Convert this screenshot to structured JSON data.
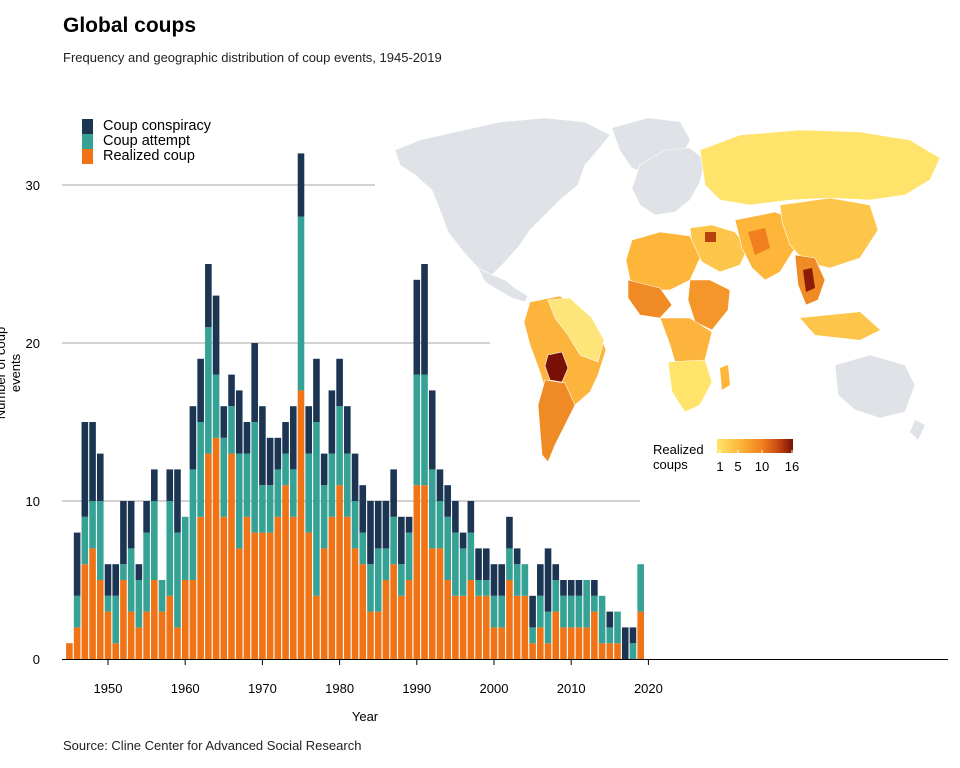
{
  "title": "Global coups",
  "subtitle": "Frequency and geographic distribution of coup events, 1945-2019",
  "caption": "Source: Cline Center for Advanced Social Research",
  "colors": {
    "conspiracy": "#1b3553",
    "attempt": "#35a295",
    "realized": "#f07316",
    "land": "#dfe2e6",
    "grid": "#c3c3c3"
  },
  "chart_data": {
    "type": "bar",
    "stacked": true,
    "title": "Global coups",
    "subtitle": "Frequency and geographic distribution of coup events, 1945-2019",
    "xlabel": "Year",
    "ylabel": "Number of coup events",
    "xlim": [
      1944.5,
      2020.5
    ],
    "ylim": [
      0,
      33
    ],
    "x_ticks": [
      1950,
      1960,
      1970,
      1980,
      1990,
      2000,
      2010,
      2020
    ],
    "y_ticks": [
      0,
      10,
      20,
      30
    ],
    "legend_position": "top-left",
    "years": [
      1945,
      1946,
      1947,
      1948,
      1949,
      1950,
      1951,
      1952,
      1953,
      1954,
      1955,
      1956,
      1957,
      1958,
      1959,
      1960,
      1961,
      1962,
      1963,
      1964,
      1965,
      1966,
      1967,
      1968,
      1969,
      1970,
      1971,
      1972,
      1973,
      1974,
      1975,
      1976,
      1977,
      1978,
      1979,
      1980,
      1981,
      1982,
      1983,
      1984,
      1985,
      1986,
      1987,
      1988,
      1989,
      1990,
      1991,
      1992,
      1993,
      1994,
      1995,
      1996,
      1997,
      1998,
      1999,
      2000,
      2001,
      2002,
      2003,
      2004,
      2005,
      2006,
      2007,
      2008,
      2009,
      2010,
      2011,
      2012,
      2013,
      2014,
      2015,
      2016,
      2017,
      2018,
      2019
    ],
    "series": [
      {
        "name": "Realized coup",
        "values": [
          1,
          2,
          6,
          7,
          5,
          3,
          1,
          5,
          3,
          2,
          3,
          5,
          3,
          4,
          2,
          5,
          5,
          9,
          13,
          14,
          9,
          13,
          7,
          9,
          8,
          8,
          8,
          9,
          11,
          9,
          17,
          8,
          4,
          7,
          9,
          11,
          9,
          7,
          6,
          3,
          3,
          5,
          6,
          4,
          5,
          11,
          11,
          7,
          7,
          5,
          4,
          4,
          5,
          4,
          4,
          2,
          2,
          5,
          4,
          4,
          1,
          2,
          1,
          3,
          2,
          2,
          2,
          2,
          3,
          1,
          1,
          1,
          0,
          0,
          3
        ]
      },
      {
        "name": "Coup attempt",
        "values": [
          0,
          2,
          3,
          3,
          5,
          1,
          3,
          1,
          4,
          3,
          5,
          5,
          2,
          6,
          6,
          4,
          7,
          6,
          8,
          4,
          5,
          3,
          6,
          4,
          7,
          3,
          3,
          3,
          2,
          3,
          11,
          5,
          11,
          4,
          4,
          5,
          4,
          3,
          2,
          3,
          4,
          2,
          3,
          2,
          3,
          7,
          7,
          5,
          3,
          4,
          4,
          3,
          3,
          1,
          1,
          2,
          2,
          2,
          2,
          2,
          1,
          2,
          2,
          2,
          2,
          2,
          2,
          3,
          1,
          3,
          1,
          2,
          0,
          1,
          3
        ]
      },
      {
        "name": "Coup conspiracy",
        "values": [
          0,
          4,
          6,
          5,
          3,
          2,
          2,
          4,
          3,
          1,
          2,
          2,
          0,
          2,
          4,
          0,
          4,
          4,
          4,
          5,
          2,
          2,
          4,
          2,
          5,
          5,
          3,
          2,
          2,
          4,
          4,
          3,
          4,
          2,
          4,
          3,
          3,
          3,
          3,
          4,
          3,
          3,
          3,
          3,
          1,
          6,
          7,
          5,
          2,
          2,
          2,
          1,
          2,
          2,
          2,
          2,
          2,
          2,
          1,
          0,
          2,
          2,
          4,
          1,
          1,
          1,
          1,
          0,
          1,
          0,
          1,
          0,
          2,
          1,
          0
        ]
      }
    ]
  },
  "map": {
    "legend_title": "Realized\ncoups",
    "legend_ticks": [
      "1",
      "5",
      "10",
      "16"
    ],
    "scale_colors": [
      "#ffe36b",
      "#fdb63a",
      "#f07f1e",
      "#c84a12",
      "#7a1005"
    ]
  }
}
